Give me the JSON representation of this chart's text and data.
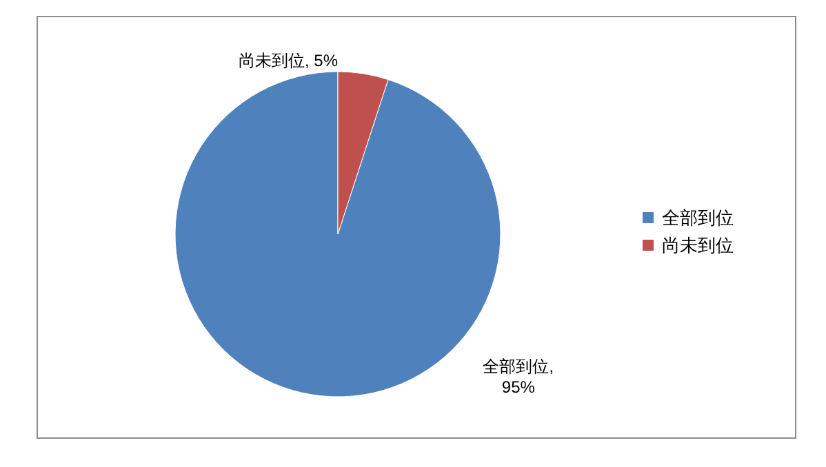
{
  "chart_data": {
    "type": "pie",
    "categories": [
      "全部到位",
      "尚未到位"
    ],
    "values": [
      95,
      5
    ],
    "colors": [
      "#4f81bd",
      "#c0504d"
    ],
    "annotations": [
      "全部到位, 95%",
      "尚未到位, 5%"
    ],
    "legend": "right"
  }
}
